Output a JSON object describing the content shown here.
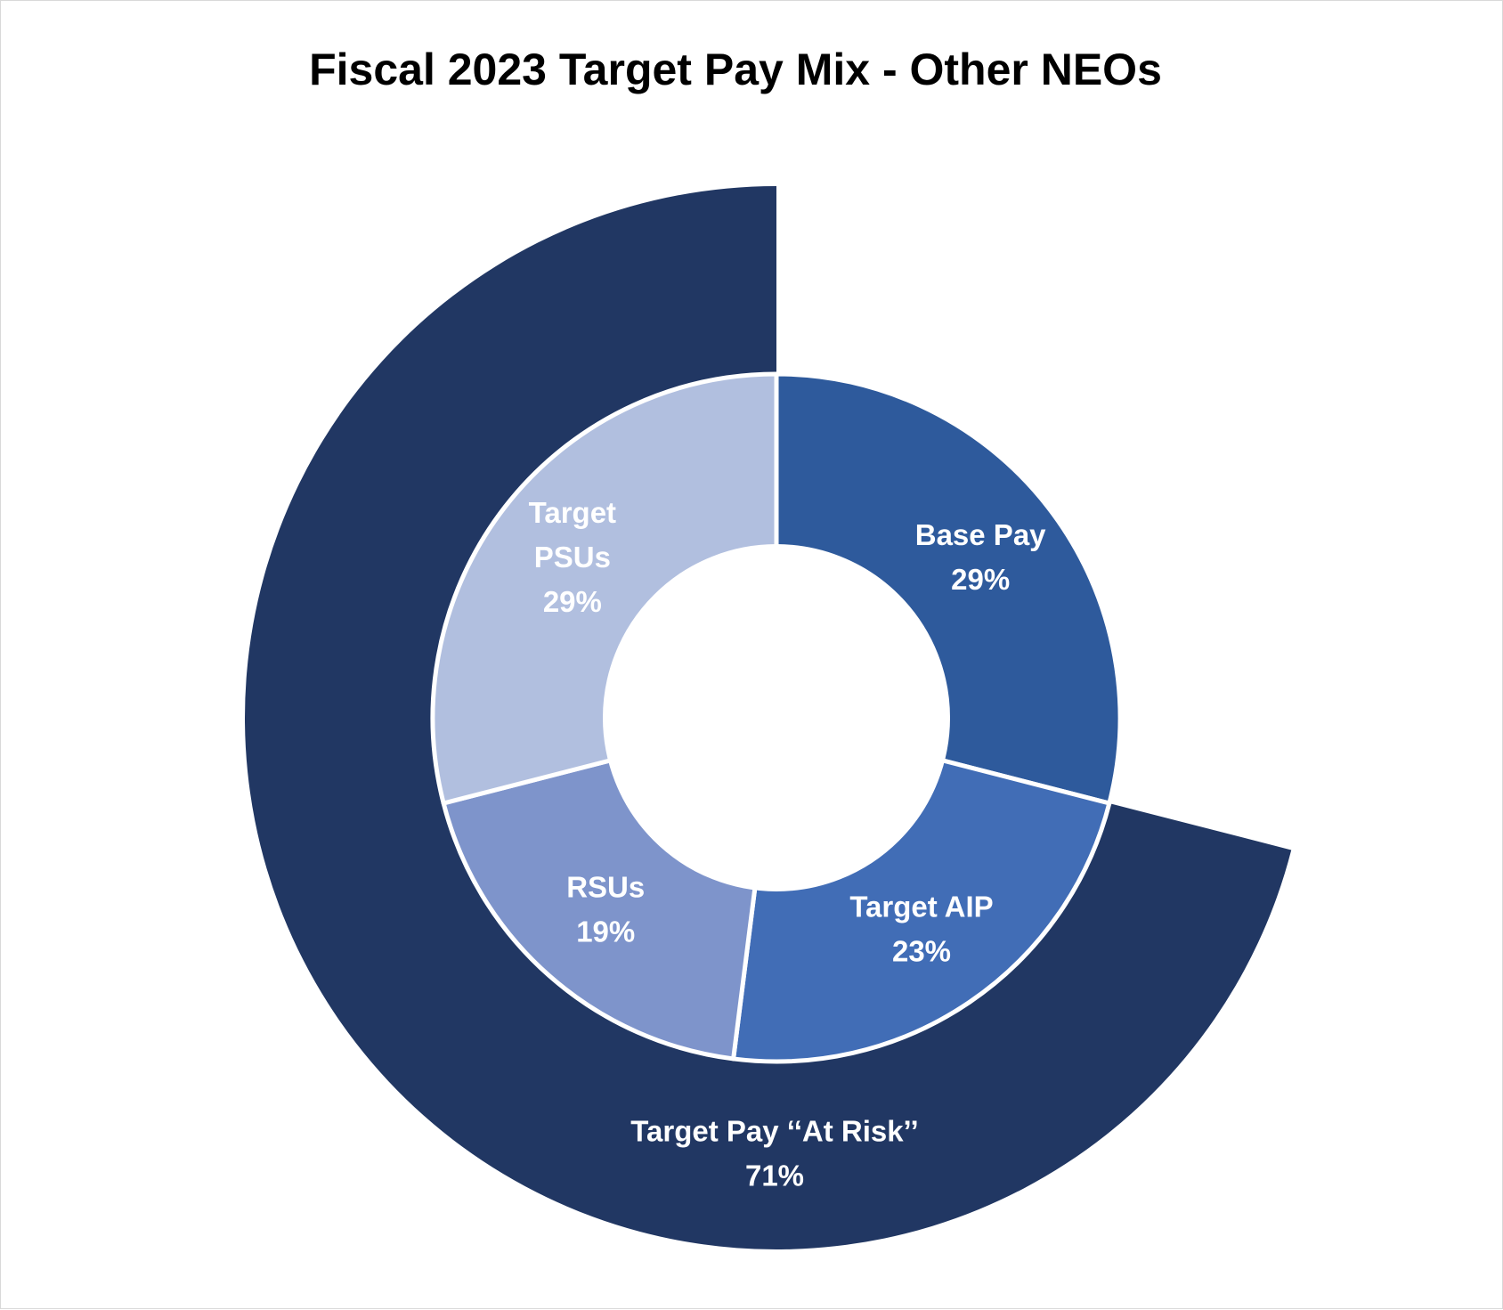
{
  "chart_data": {
    "type": "pie",
    "title": "Fiscal 2023 Target Pay Mix - Other NEOs",
    "inner_ring": [
      {
        "name": "Base Pay",
        "label_lines": [
          "Base Pay"
        ],
        "pct_label": "29%",
        "value": 29,
        "color": "#2e5a9c"
      },
      {
        "name": "Target AIP",
        "label_lines": [
          "Target AIP"
        ],
        "pct_label": "23%",
        "value": 23,
        "color": "#416db6"
      },
      {
        "name": "RSUs",
        "label_lines": [
          "RSUs"
        ],
        "pct_label": "19%",
        "value": 19,
        "color": "#7e94cb"
      },
      {
        "name": "Target PSUs",
        "label_lines": [
          "Target",
          "PSUs"
        ],
        "pct_label": "29%",
        "value": 29,
        "color": "#b1bfdf"
      }
    ],
    "outer_ring": {
      "name": "Target Pay ““At Risk””",
      "label_lines": [
        "Target Pay ‘‘At Risk’’"
      ],
      "pct_label": "71%",
      "value": 71,
      "color": "#213763"
    },
    "legend": "none"
  }
}
